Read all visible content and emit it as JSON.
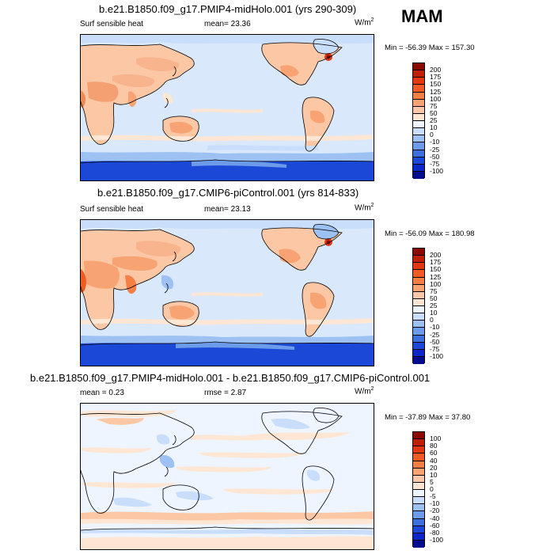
{
  "season": "MAM",
  "panels": [
    {
      "title": "b.e21.B1850.f09_g17.PMIP4-midHolo.001 (yrs 290-309)",
      "left_label": "Surf sensible heat",
      "stat1": "mean=  23.36",
      "stat2": "",
      "units_base": "W/m",
      "units_sup": "2",
      "minmax": "Min = -56.39 Max = 157.30",
      "levels": [
        "200",
        "175",
        "150",
        "125",
        "100",
        "75",
        "50",
        "25",
        "10",
        "0",
        "-10",
        "-25",
        "-50",
        "-75",
        "-100"
      ],
      "colors": [
        "#8a0a02",
        "#c01f06",
        "#e2370f",
        "#f05a25",
        "#f57f45",
        "#f8a373",
        "#fbc7a4",
        "#fde6d4",
        "#eef5fe",
        "#c8defa",
        "#9dc1f2",
        "#6c9ce9",
        "#3e6fdd",
        "#1c48d8",
        "#0a28c7",
        "#040c8e"
      ]
    },
    {
      "title": "b.e21.B1850.f09_g17.CMIP6-piControl.001 (yrs 814-833)",
      "left_label": "Surf sensible heat",
      "stat1": "mean=  23.13",
      "stat2": "",
      "units_base": "W/m",
      "units_sup": "2",
      "minmax": "Min = -56.09 Max = 180.98",
      "levels": [
        "200",
        "175",
        "150",
        "125",
        "100",
        "75",
        "50",
        "25",
        "10",
        "0",
        "-10",
        "-25",
        "-50",
        "-75",
        "-100"
      ],
      "colors": [
        "#8a0a02",
        "#c01f06",
        "#e2370f",
        "#f05a25",
        "#f57f45",
        "#f8a373",
        "#fbc7a4",
        "#fde6d4",
        "#eef5fe",
        "#c8defa",
        "#9dc1f2",
        "#6c9ce9",
        "#3e6fdd",
        "#1c48d8",
        "#0a28c7",
        "#040c8e"
      ]
    },
    {
      "title": "b.e21.B1850.f09_g17.PMIP4-midHolo.001 - b.e21.B1850.f09_g17.CMIP6-piControl.001",
      "left_label": "mean =   0.23",
      "stat1": "",
      "stat2": "rmse =   2.87",
      "units_base": "W/m",
      "units_sup": "2",
      "minmax": "Min = -37.89 Max =  37.80",
      "levels": [
        "100",
        "80",
        "60",
        "40",
        "20",
        "10",
        "5",
        "0",
        "-5",
        "-10",
        "-20",
        "-40",
        "-60",
        "-80",
        "-100"
      ],
      "colors": [
        "#8a0a02",
        "#c01f06",
        "#e2370f",
        "#f05a25",
        "#f57f45",
        "#f8a373",
        "#fbc7a4",
        "#fde6d4",
        "#eef5fe",
        "#c8defa",
        "#9dc1f2",
        "#6c9ce9",
        "#3e6fdd",
        "#1c48d8",
        "#0a28c7",
        "#040c8e"
      ]
    }
  ]
}
